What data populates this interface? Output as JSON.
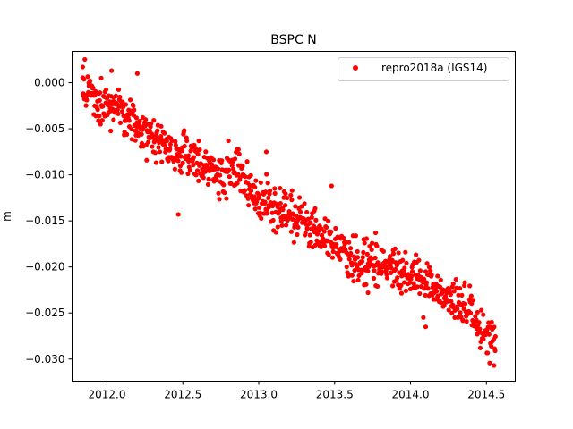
{
  "chart_data": {
    "type": "scatter",
    "title": "BSPC N",
    "xlabel": "",
    "ylabel": "m",
    "xlim": [
      2011.77,
      2014.69
    ],
    "ylim": [
      -0.0324,
      0.0034
    ],
    "xticks": [
      2012.0,
      2012.5,
      2013.0,
      2013.5,
      2014.0,
      2014.5
    ],
    "xtick_labels": [
      "2012.0",
      "2012.5",
      "2013.0",
      "2013.5",
      "2014.0",
      "2014.5"
    ],
    "yticks": [
      0.0,
      -0.005,
      -0.01,
      -0.015,
      -0.02,
      -0.025,
      -0.03
    ],
    "ytick_labels": [
      "0.000",
      "−0.005",
      "−0.010",
      "−0.015",
      "−0.020",
      "−0.025",
      "−0.030"
    ],
    "grid": false,
    "legend_position": "top-right",
    "series": [
      {
        "name": "repro2018a (IGS14)",
        "color": "#ff0000",
        "marker": "circle",
        "x_range": [
          2011.84,
          2014.56
        ],
        "n_points": 900,
        "anchors": [
          {
            "x": 2011.84,
            "y": -0.0005
          },
          {
            "x": 2012.0,
            "y": -0.0025
          },
          {
            "x": 2012.1,
            "y": -0.003
          },
          {
            "x": 2012.25,
            "y": -0.0055
          },
          {
            "x": 2012.5,
            "y": -0.008
          },
          {
            "x": 2012.75,
            "y": -0.0105
          },
          {
            "x": 2012.85,
            "y": -0.0095
          },
          {
            "x": 2013.0,
            "y": -0.0125
          },
          {
            "x": 2013.25,
            "y": -0.0145
          },
          {
            "x": 2013.5,
            "y": -0.0175
          },
          {
            "x": 2013.65,
            "y": -0.0195
          },
          {
            "x": 2013.8,
            "y": -0.0195
          },
          {
            "x": 2014.0,
            "y": -0.021
          },
          {
            "x": 2014.2,
            "y": -0.0225
          },
          {
            "x": 2014.4,
            "y": -0.025
          },
          {
            "x": 2014.56,
            "y": -0.0285
          }
        ],
        "noise_sd": 0.0011,
        "extremes": [
          {
            "x": 2011.84,
            "y": 0.0017
          },
          {
            "x": 2012.03,
            "y": 0.0013
          },
          {
            "x": 2012.2,
            "y": 0.001
          },
          {
            "x": 2012.47,
            "y": -0.0143
          },
          {
            "x": 2012.8,
            "y": -0.0063
          },
          {
            "x": 2013.05,
            "y": -0.0075
          },
          {
            "x": 2013.48,
            "y": -0.0112
          },
          {
            "x": 2013.72,
            "y": -0.0228
          },
          {
            "x": 2013.77,
            "y": -0.0163
          },
          {
            "x": 2014.1,
            "y": -0.0265
          },
          {
            "x": 2014.55,
            "y": -0.0307
          }
        ]
      }
    ]
  }
}
